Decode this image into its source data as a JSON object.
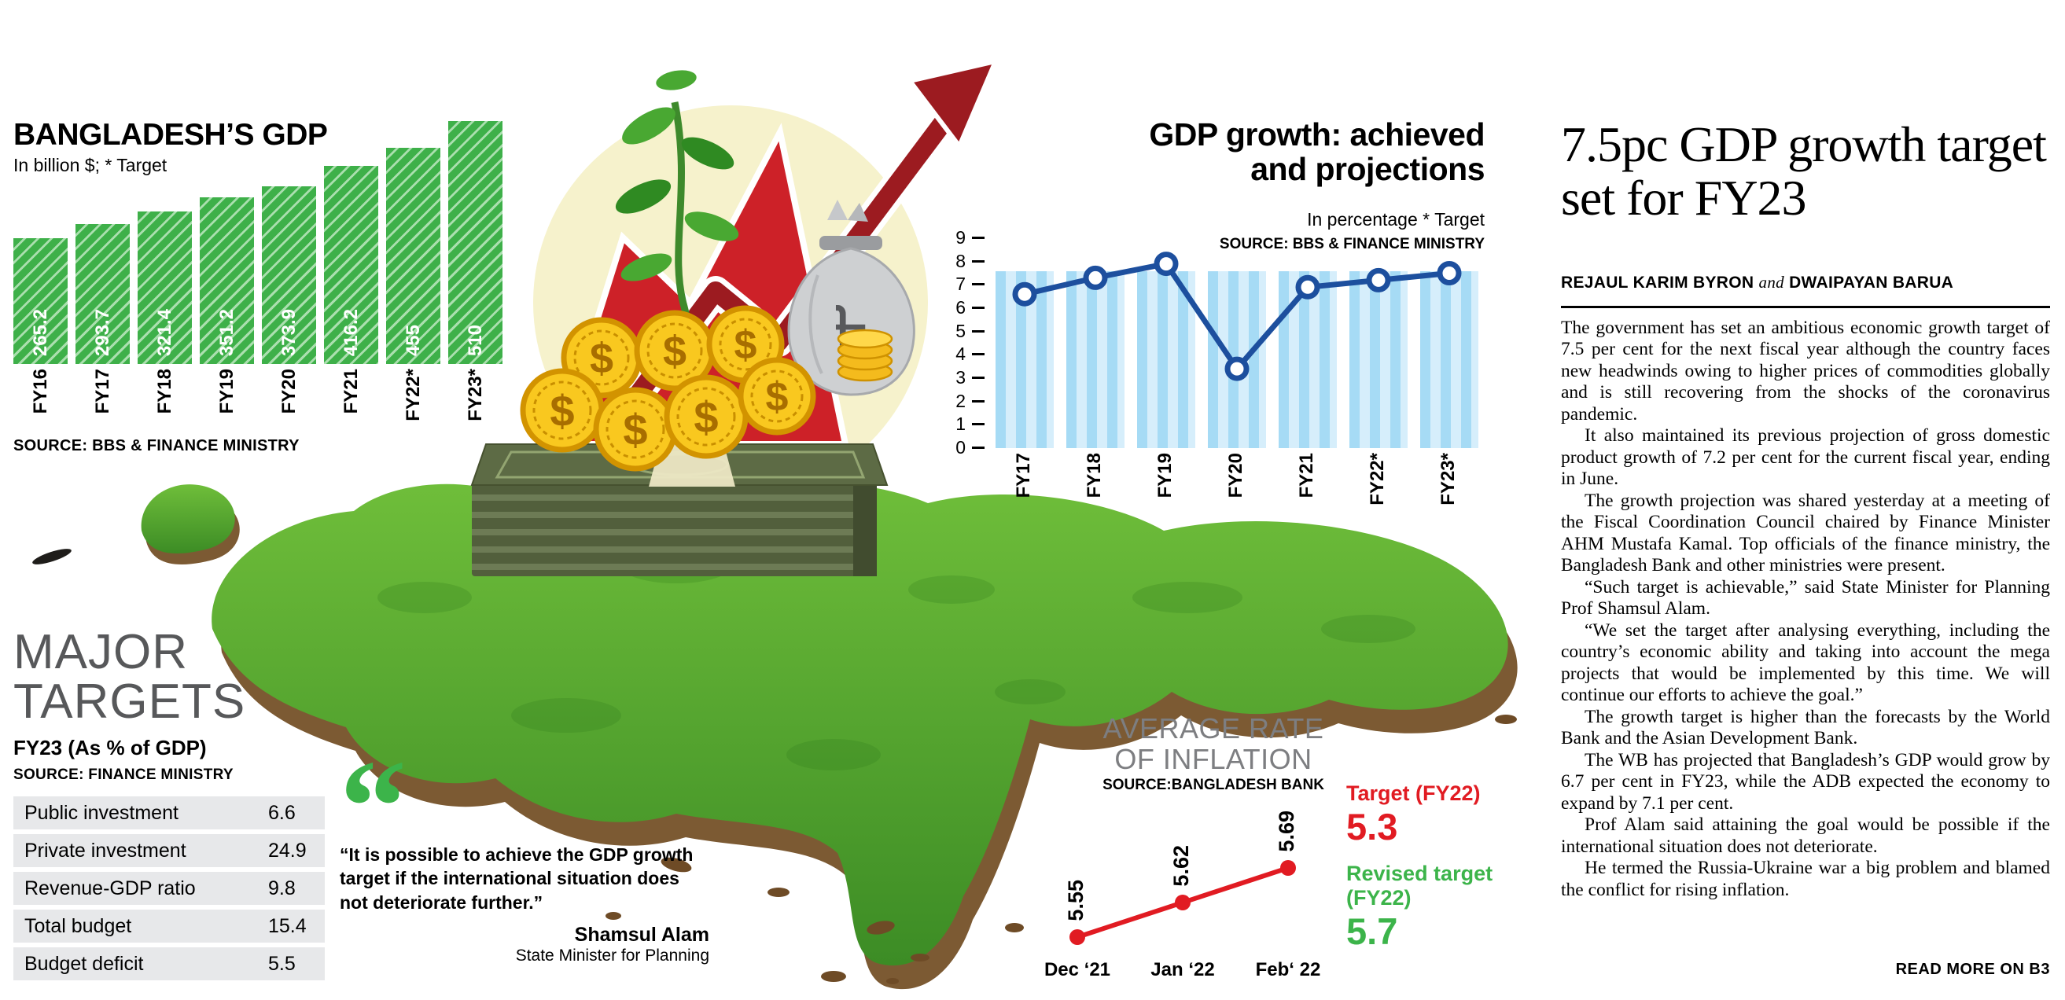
{
  "colors": {
    "bar_green": "#3eb049",
    "accent_green": "#3cb44a",
    "accent_red": "#e11b22",
    "arrow_dark_red": "#9c1b20",
    "line_blue": "#1d4f9e",
    "light_blue": "#a6dbf5",
    "gray_title": "#7d7e81"
  },
  "icons": {
    "taka_symbol": "৳",
    "dollar_symbol": "$",
    "quote_glyph": "“",
    "growth_arrow": "up-right-arrow"
  },
  "chart_data": [
    {
      "type": "bar",
      "title": "BANGLADESH’S GDP",
      "subtitle": "In billion $; * Target",
      "source": "SOURCE: BBS & FINANCE MINISTRY",
      "categories": [
        "FY16",
        "FY17",
        "FY18",
        "FY19",
        "FY20",
        "FY21",
        "FY22*",
        "FY23*"
      ],
      "values": [
        265.2,
        293.7,
        321.4,
        351.2,
        373.9,
        416.2,
        455,
        510
      ]
    },
    {
      "type": "line",
      "title": "GDP growth: achieved and projections",
      "subtitle": "In percentage * Target",
      "source": "SOURCE: BBS & FINANCE MINISTRY",
      "categories": [
        "FY17",
        "FY18",
        "FY19",
        "FY20",
        "FY21",
        "FY22*",
        "FY23*"
      ],
      "values": [
        6.6,
        7.3,
        7.9,
        3.4,
        6.9,
        7.2,
        7.5
      ],
      "y_ticks": [
        0,
        1,
        2,
        3,
        4,
        5,
        6,
        7,
        8,
        9
      ],
      "ylim": [
        0,
        9
      ]
    },
    {
      "type": "line",
      "title": "AVERAGE RATE OF INFLATION",
      "source_label": "SOURCE:",
      "source": "BANGLADESH BANK",
      "categories": [
        "Dec ‘21",
        "Jan ‘22",
        "Feb‘ 22"
      ],
      "values": [
        5.55,
        5.62,
        5.69
      ],
      "color": "#e11b22"
    }
  ],
  "inflation_targets": {
    "target_label": "Target (FY22)",
    "target_value": "5.3",
    "revised_label": "Revised target (FY22)",
    "revised_value": "5.7"
  },
  "major_targets": {
    "title": "MAJOR TARGETS",
    "subtitle": "FY23 (As % of GDP)",
    "source": "SOURCE: FINANCE MINISTRY",
    "rows": [
      {
        "label": "Public investment",
        "value": "6.6"
      },
      {
        "label": "Private investment",
        "value": "24.9"
      },
      {
        "label": "Revenue-GDP ratio",
        "value": "9.8"
      },
      {
        "label": "Total budget",
        "value": "15.4"
      },
      {
        "label": "Budget deficit",
        "value": "5.5"
      }
    ]
  },
  "quote": {
    "glyph": "“",
    "text": "“It is possible to achieve the GDP growth target if the international situation does not deteriorate further.”",
    "author": "Shamsul Alam",
    "author_title": "State Minister for Planning"
  },
  "article": {
    "headline": "7.5pc GDP growth target set for FY23",
    "byline_name1": "REJAUL KARIM BYRON",
    "byline_connector": "and",
    "byline_name2": "DWAIPAYAN BARUA",
    "paragraphs": [
      "The government has set an ambitious economic growth target of 7.5 per cent for the next fiscal year although the country faces new headwinds owing to higher prices of commodities globally and is still recovering from the shocks of the coronavirus pandemic.",
      "It also maintained its previous projection of gross domestic product growth of 7.2 per cent for the current fiscal year, ending in June.",
      "The growth projection was shared yesterday at a meeting of the Fiscal Coordination Council chaired by Finance Minister AHM Mustafa Kamal. Top officials of the finance ministry, the Bangladesh Bank and other ministries were present.",
      "“Such target is achievable,” said State Minister for Planning Prof Shamsul Alam.",
      "“We set the target after analysing everything, including the country’s economic ability and taking into account the mega projects that would be implemented by this time. We will continue our efforts to achieve the goal.”",
      "The growth target is higher than the forecasts by the World Bank and the Asian Development Bank.",
      "The WB has projected that Bangladesh’s GDP would grow by 6.7 per cent in FY23, while the ADB expected the economy to expand by 7.1 per cent.",
      "Prof Alam said attaining the goal would be possible if the international situation does not deteriorate.",
      "He termed the Russia-Ukraine war a big problem and blamed the conflict for rising inflation."
    ],
    "read_more": "READ MORE ON B3"
  }
}
